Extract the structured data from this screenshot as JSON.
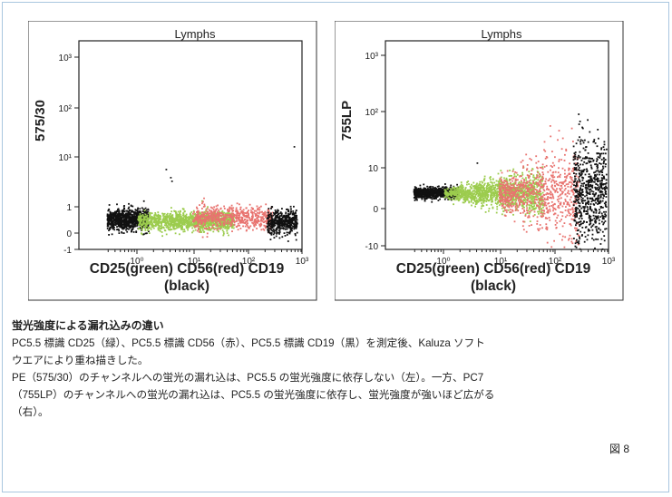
{
  "chart_data": [
    {
      "type": "scatter",
      "title": "Lymphs",
      "xlabel_line1": "CD25(green) CD56(red) CD19",
      "xlabel_line2": "(black)",
      "ylabel": "575/30",
      "x_scale": "log",
      "y_scale": "biexponential",
      "x_ticks": [
        "10⁰",
        "10¹",
        "10²",
        "10³"
      ],
      "y_ticks": [
        "10³",
        "10²",
        "10¹",
        "1",
        "0",
        "-1"
      ],
      "series": [
        {
          "name": "CD25",
          "color": "#9ccc4e",
          "x_range": [
            1,
            60
          ],
          "y_center": 0.2,
          "y_spread": "narrow, constant"
        },
        {
          "name": "CD56",
          "color": "#e8736f",
          "x_range": [
            10,
            250
          ],
          "y_center": 0.3,
          "y_spread": "narrow, constant"
        },
        {
          "name": "CD19",
          "color": "#111111",
          "x_range": [
            0.3,
            1.2
          ],
          "y_center": 0.3,
          "y_spread": "narrow"
        },
        {
          "name": "CD19-high",
          "color": "#111111",
          "x_range": [
            200,
            800
          ],
          "y_center": 0.2,
          "y_spread": "narrow"
        }
      ]
    },
    {
      "type": "scatter",
      "title": "Lymphs",
      "xlabel_line1": "CD25(green) CD56(red) CD19",
      "xlabel_line2": "(black)",
      "ylabel": "755LP",
      "x_scale": "log",
      "y_scale": "biexponential",
      "x_ticks": [
        "10⁰",
        "10¹",
        "10²",
        "10³"
      ],
      "y_ticks": [
        "10³",
        "10²",
        "10",
        "0",
        "-10"
      ],
      "series": [
        {
          "name": "CD25",
          "color": "#9ccc4e",
          "x_range": [
            1,
            60
          ],
          "y_center": 0,
          "y_spread": "widening with intensity"
        },
        {
          "name": "CD56",
          "color": "#e8736f",
          "x_range": [
            10,
            250
          ],
          "y_center": 0,
          "y_spread": "widening with intensity"
        },
        {
          "name": "CD19",
          "color": "#111111",
          "x_range": [
            0.3,
            1.2
          ],
          "y_center": 0,
          "y_spread": "narrow"
        },
        {
          "name": "CD19-high",
          "color": "#111111",
          "x_range": [
            200,
            800
          ],
          "y_center": 0,
          "y_spread": "very wide"
        }
      ]
    }
  ],
  "caption": {
    "heading": "蛍光強度による漏れ込みの違い",
    "line1": "PC5.5 標識 CD25（緑）、PC5.5 標識 CD56（赤）、PC5.5 標識 CD19（黒）を測定後、Kaluza ソフト",
    "line2": "ウエアにより重ね描きした。",
    "line3": "PE（575/30）のチャンネルへの蛍光の漏れ込は、PC5.5 の蛍光強度に依存しない（左）。一方、PC7",
    "line4": "（755LP）のチャンネルへの蛍光の漏れ込は、PC5.5 の蛍光強度に依存し、蛍光強度が強いほど広がる",
    "line5": "（右）。"
  },
  "figure_label": "図 8"
}
